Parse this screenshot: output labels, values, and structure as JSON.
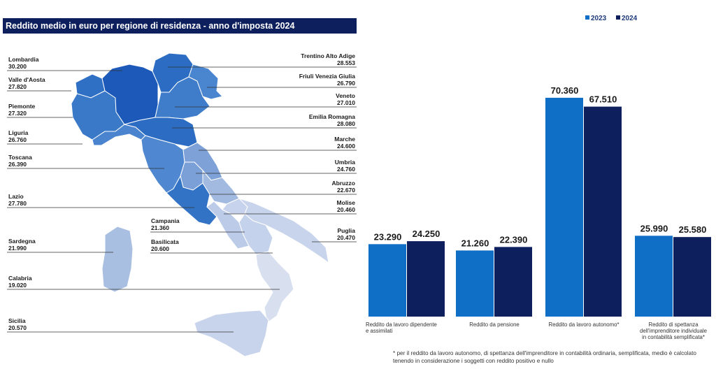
{
  "map": {
    "title": "Reddito medio in euro per regione di residenza - anno d'imposta 2024",
    "regions": [
      {
        "id": "lombardia",
        "name": "Lombardia",
        "value": "30.200",
        "color": "#1c59b8"
      },
      {
        "id": "valle-daosta",
        "name": "Valle d'Aosta",
        "value": "27.820",
        "color": "#2f6fc4"
      },
      {
        "id": "piemonte",
        "name": "Piemonte",
        "value": "27.320",
        "color": "#3a78c8"
      },
      {
        "id": "liguria",
        "name": "Liguria",
        "value": "26.760",
        "color": "#4a84ce"
      },
      {
        "id": "toscana",
        "name": "Toscana",
        "value": "26.390",
        "color": "#4f88d0"
      },
      {
        "id": "lazio",
        "name": "Lazio",
        "value": "27.780",
        "color": "#3373c5"
      },
      {
        "id": "sardegna",
        "name": "Sardegna",
        "value": "21.990",
        "color": "#a9bfe2"
      },
      {
        "id": "calabria",
        "name": "Calabria",
        "value": "19.020",
        "color": "#d8e0f0"
      },
      {
        "id": "sicilia",
        "name": "Sicilia",
        "value": "20.570",
        "color": "#c8d4ec"
      },
      {
        "id": "trentino",
        "name": "Trentino Alto Adige",
        "value": "28.553",
        "color": "#2c6cc2"
      },
      {
        "id": "friuli",
        "name": "Friuli Venezia Giulia",
        "value": "26.790",
        "color": "#4a85cf"
      },
      {
        "id": "veneto",
        "name": "Veneto",
        "value": "27.010",
        "color": "#3f7dcb"
      },
      {
        "id": "emilia",
        "name": "Emilia Romagna",
        "value": "28.080",
        "color": "#2c6cc2"
      },
      {
        "id": "marche",
        "name": "Marche",
        "value": "24.600",
        "color": "#7ea2d8"
      },
      {
        "id": "umbria",
        "name": "Umbria",
        "value": "24.760",
        "color": "#7aa0d7"
      },
      {
        "id": "abruzzo",
        "name": "Abruzzo",
        "value": "22.670",
        "color": "#a2bae0"
      },
      {
        "id": "molise",
        "name": "Molise",
        "value": "20.460",
        "color": "#c7d3ec"
      },
      {
        "id": "campania",
        "name": "Campania",
        "value": "21.360",
        "color": "#bccbe8"
      },
      {
        "id": "basilicata",
        "name": "Basilicata",
        "value": "20.600",
        "color": "#c5d2eb"
      },
      {
        "id": "puglia",
        "name": "Puglia",
        "value": "20.470",
        "color": "#c8d4ec"
      }
    ]
  },
  "chart_data": {
    "type": "bar",
    "categories": [
      "Reddito da lavoro dipendente e assimilati",
      "Reddito da pensione",
      "Reddito da lavoro autonomo*",
      "Reddito di spettanza dell'imprenditore individuale in contabilità semplificata*"
    ],
    "series": [
      {
        "name": "2023",
        "values": [
          23290,
          21260,
          70360,
          25990
        ],
        "labels": [
          "23.290",
          "21.260",
          "70.360",
          "25.990"
        ],
        "color": "#0f6fc6"
      },
      {
        "name": "2024",
        "values": [
          24250,
          22390,
          67510,
          25580
        ],
        "labels": [
          "24.250",
          "22.390",
          "67.510",
          "25.580"
        ],
        "color": "#0d1f5c"
      }
    ],
    "ylim": [
      0,
      80000
    ],
    "grid": false,
    "legend": "top-right"
  },
  "footnote": "* per il reddito da lavoro autonomo, di spettanza dell'imprenditore in contabilità ordinaria, semplificata, medio è calcolato tenendo in considerazione i soggetti con reddito positivo e nullo"
}
